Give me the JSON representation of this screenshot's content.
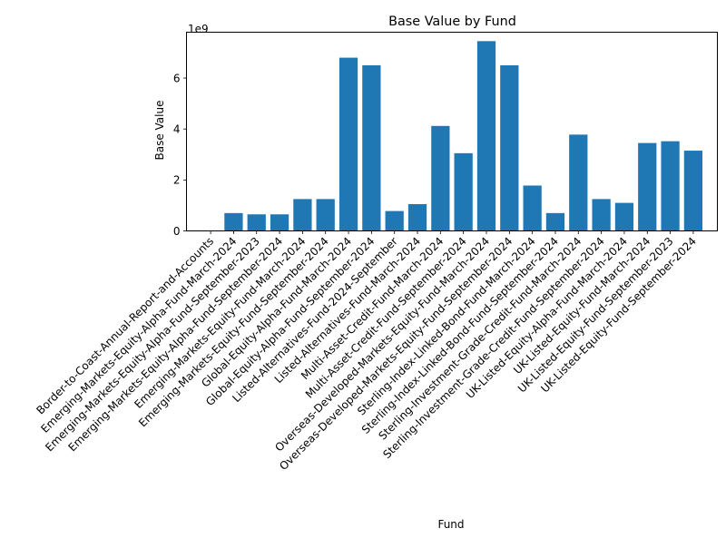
{
  "chart_data": {
    "type": "bar",
    "title": "Base Value by Fund",
    "xlabel": "Fund",
    "ylabel": "Base Value",
    "y_offset_text": "1e9",
    "y_scale": 1000000000,
    "ylim": [
      0,
      7800000000
    ],
    "yticks": [
      0,
      2000000000,
      4000000000,
      6000000000
    ],
    "ytick_labels": [
      "0",
      "2",
      "4",
      "6"
    ],
    "bar_color": "#1f77b4",
    "grid": false,
    "legend": "none",
    "categories": [
      "Border-to-Coast-Annual-Report-and-Accounts",
      "Emerging-Markets-Equity-Alpha-Fund-March-2024",
      "Emerging-Markets-Equity-Alpha-Fund-September-2023",
      "Emerging-Markets-Equity-Alpha-Fund-September-2024",
      "Emerging-Markets-Equity-Fund-March-2024",
      "Emerging-Markets-Equity-Fund-September-2024",
      "Global-Equity-Alpha-Fund-March-2024",
      "Global-Equity-Alpha-Fund-September-2024",
      "Listed-Alternatives-Fund-2024-September",
      "Listed-Alternatives-Fund-March-2024",
      "Multi-Asset-Credit-Fund-March-2024",
      "Multi-Asset-Credit-Fund-September-2024",
      "Overseas-Developed-Markets-Equity-Fund-March-2024",
      "Overseas-Developed-Markets-Equity-Fund-September-2024",
      "Sterling-Index-Linked-Bond-Fund-March-2024",
      "Sterling-Index-Linked-Bond-Fund-September-2024",
      "Sterling-Investment-Grade-Credit-Fund-March-2024",
      "Sterling-Investment-Grade-Credit-Fund-September-2024",
      "UK-Listed-Equity-Alpha-Fund-March-2024",
      "UK-Listed-Equity-Fund-March-2024",
      "UK-Listed-Equity-Fund-September-2023",
      "UK-Listed-Equity-Fund-September-2024"
    ],
    "values": [
      0,
      700000000,
      650000000,
      650000000,
      1250000000,
      1250000000,
      6800000000,
      6500000000,
      780000000,
      1050000000,
      4120000000,
      3050000000,
      7450000000,
      6500000000,
      1780000000,
      700000000,
      3780000000,
      1250000000,
      1100000000,
      3450000000,
      3520000000,
      3150000000
    ]
  }
}
